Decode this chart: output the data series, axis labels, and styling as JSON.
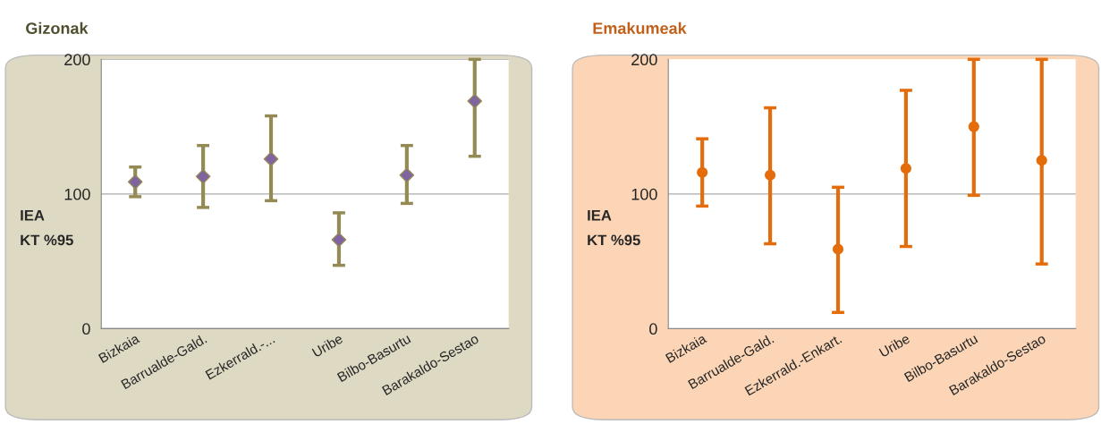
{
  "chart_data": [
    {
      "type": "scatter",
      "title": "Gizonak",
      "ylabel": "IEA\nKT %95",
      "categories": [
        "Bizkaia",
        "Barrualde-Gald.",
        "Ezkerrald.-...",
        "Uribe",
        "Bilbo-Basurtu",
        "Barakaldo-Sestao"
      ],
      "series": [
        {
          "color": "#948a54",
          "values": [
            109,
            113,
            126,
            66,
            114,
            169
          ],
          "errors": [
            [
              98,
              120
            ],
            [
              90,
              136
            ],
            [
              95,
              158
            ],
            [
              47,
              86
            ],
            [
              93,
              136
            ],
            [
              128,
              200
            ]
          ]
        }
      ],
      "ylim": [
        0,
        200
      ],
      "yticks": [
        0,
        100,
        200
      ],
      "grid": "y",
      "marker": "diamond"
    },
    {
      "type": "scatter",
      "title": "Emakumeak",
      "ylabel": "IEA\nKT %95",
      "categories": [
        "Bizkaia",
        "Barrualde-Gald.",
        "Ezkerrald.-Enkart.",
        "Uribe",
        "Bilbo-Basurtu",
        "Barakaldo-Sestao"
      ],
      "series": [
        {
          "color": "#e46c0a",
          "values": [
            116,
            114,
            59,
            119,
            150,
            125
          ],
          "errors": [
            [
              91,
              141
            ],
            [
              63,
              164
            ],
            [
              12,
              105
            ],
            [
              61,
              177
            ],
            [
              99,
              200
            ],
            [
              48,
              200
            ]
          ]
        }
      ],
      "ylim": [
        0,
        200
      ],
      "yticks": [
        0,
        100,
        200
      ],
      "ref_lines": [
        {
          "axis": "y",
          "value": 100,
          "color": "#aaaaaa"
        }
      ],
      "marker": "circle"
    }
  ]
}
